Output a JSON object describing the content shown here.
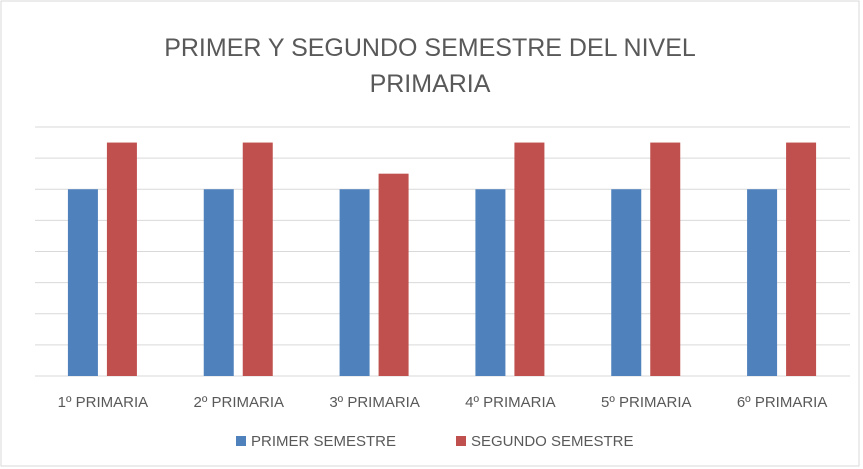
{
  "chart_data": {
    "type": "bar",
    "title": "PRIMER Y SEGUNDO SEMESTRE DEL NIVEL PRIMARIA",
    "categories": [
      "1º PRIMARIA",
      "2º PRIMARIA",
      "3º PRIMARIA",
      "4º PRIMARIA",
      "5º PRIMARIA",
      "6º PRIMARIA"
    ],
    "series": [
      {
        "name": "PRIMER SEMESTRE",
        "color": "#4f81bd",
        "values": [
          6,
          6,
          6,
          6,
          6,
          6
        ]
      },
      {
        "name": "SEGUNDO SEMESTRE",
        "color": "#c0504d",
        "values": [
          7.5,
          7.5,
          6.5,
          7.5,
          7.5,
          7.5
        ]
      }
    ],
    "ylim": [
      0,
      8
    ],
    "yticks": [
      0,
      1,
      2,
      3,
      4,
      5,
      6,
      7,
      8
    ],
    "grid": true,
    "legend": "bottom"
  }
}
